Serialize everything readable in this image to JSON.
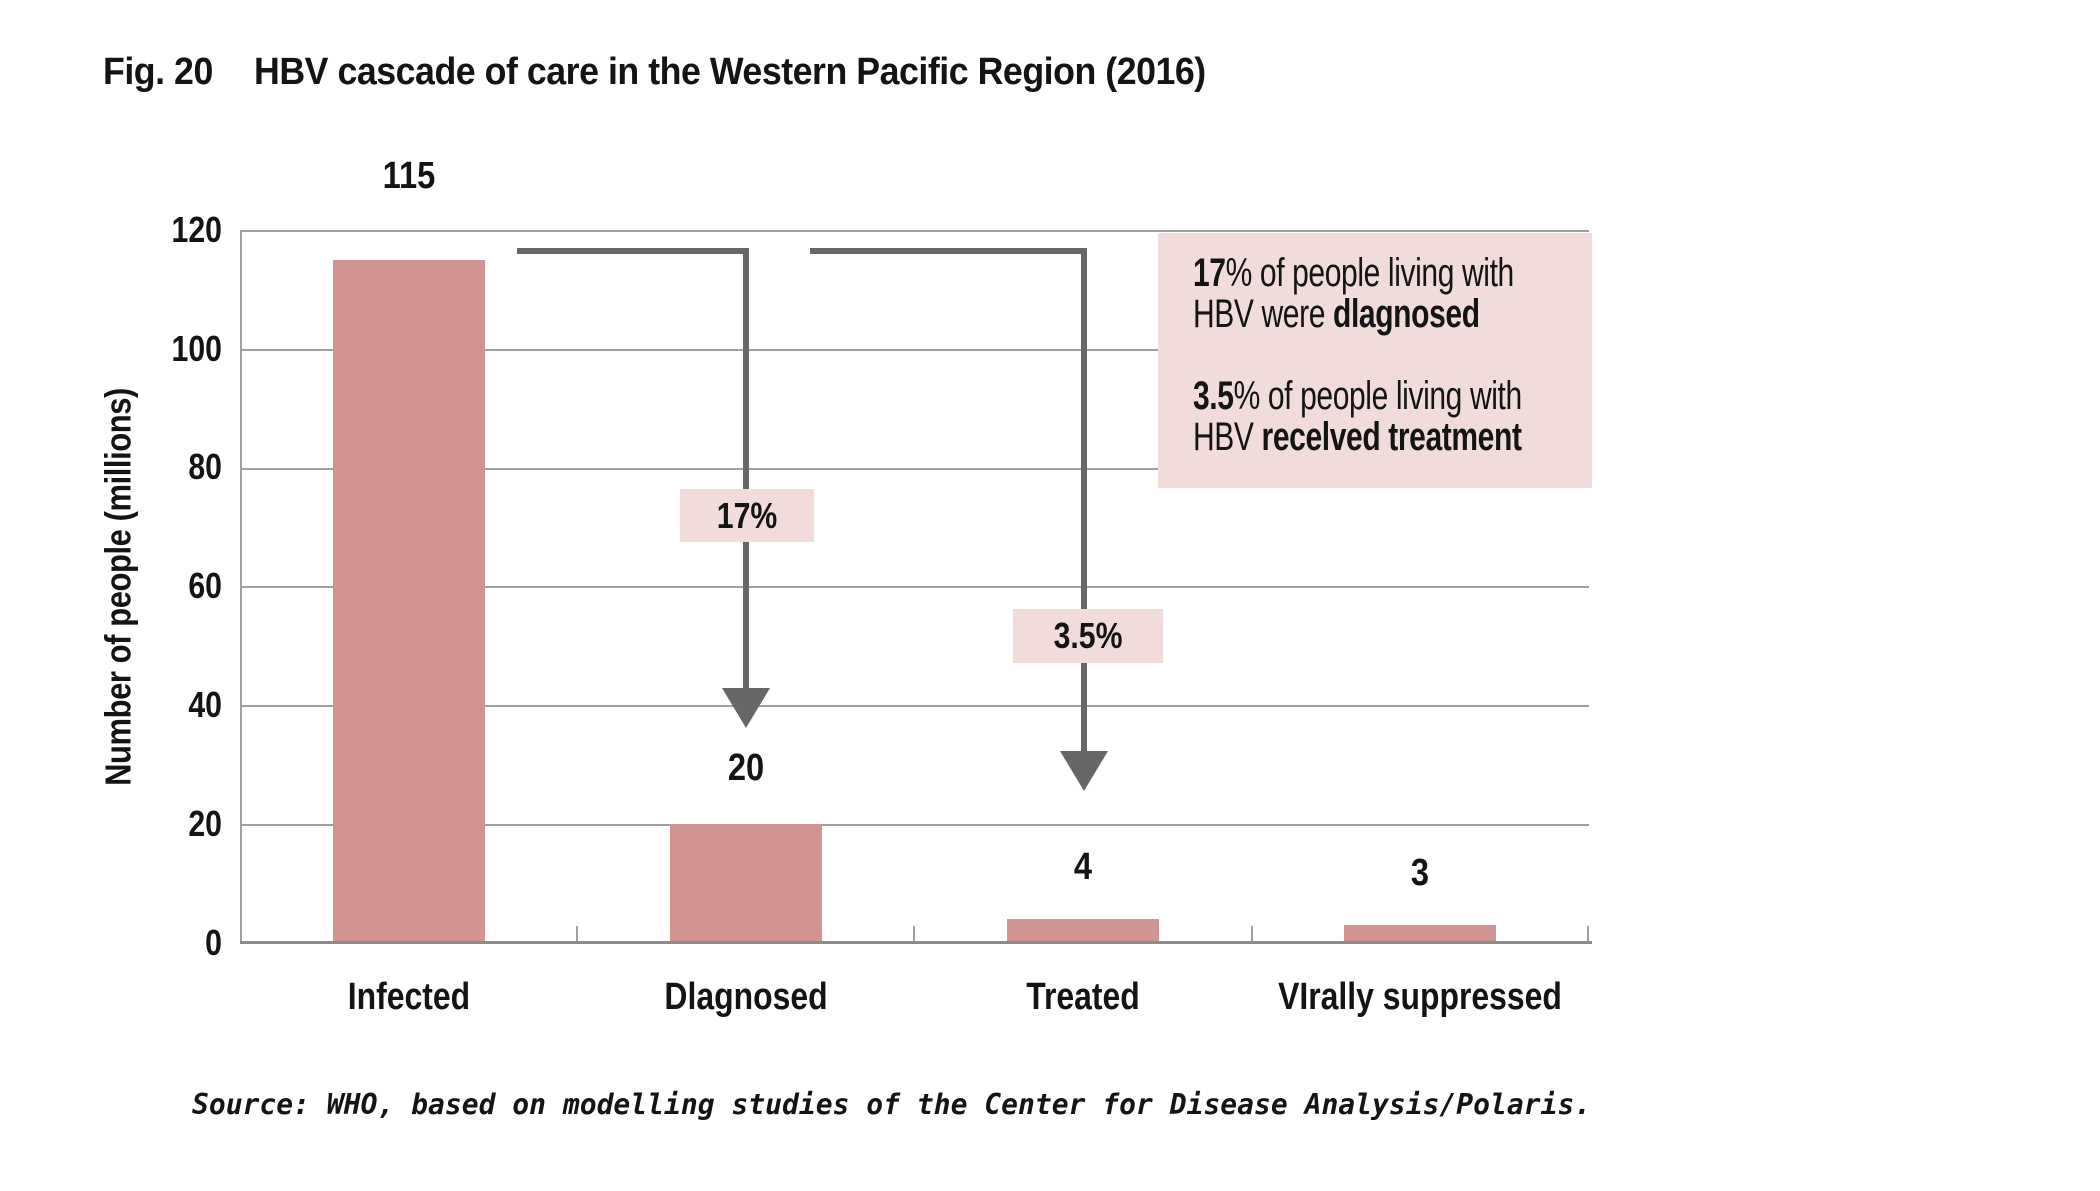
{
  "figure": {
    "label": "Fig. 20",
    "title": "HBV cascade of care in the Western Pacific Region (2016)",
    "source": "Source: WHO, based on modelling studies of the Center for Disease Analysis/Polaris."
  },
  "chart_data": {
    "type": "bar",
    "title": "HBV cascade of care in the Western Pacific Region (2016)",
    "categories": [
      "Infected",
      "Dlagnosed",
      "Treated",
      "VIrally suppressed"
    ],
    "values": [
      115,
      20,
      4,
      3
    ],
    "value_labels": [
      "115",
      "20",
      "4",
      "3"
    ],
    "xlabel": "",
    "ylabel": "Number of people (millions)",
    "ylim": [
      0,
      120
    ],
    "ytick_labels": [
      "120",
      "100",
      "80",
      "60",
      "40",
      "20",
      "0"
    ],
    "gridlines": "horizontal every 20, light gray; plot open on right side",
    "legend": "none",
    "bar_color": "#d29492",
    "annotations": [
      {
        "label": "17%",
        "shape": "elbow arrow from top of Infected bar down to Diagnosed bar"
      },
      {
        "label": "3.5%",
        "shape": "elbow arrow from top of Infected bar down to Treated bar"
      }
    ]
  },
  "note_box": {
    "line1_bold": "17",
    "line1_rest": "% of people living with",
    "line2_pre": "HBV were ",
    "line2_bold": "dlagnosed",
    "line3_bold": "3.5",
    "line3_rest": "% of people living with",
    "line4_pre": "HBV ",
    "line4_bold": "recelved treatment"
  },
  "colors": {
    "bar": "#d29492",
    "pink": "#f1dcdb",
    "arrow": "#676767",
    "grid": "#9f9f9f",
    "axis": "#8c8c8c",
    "text": "#141414"
  }
}
